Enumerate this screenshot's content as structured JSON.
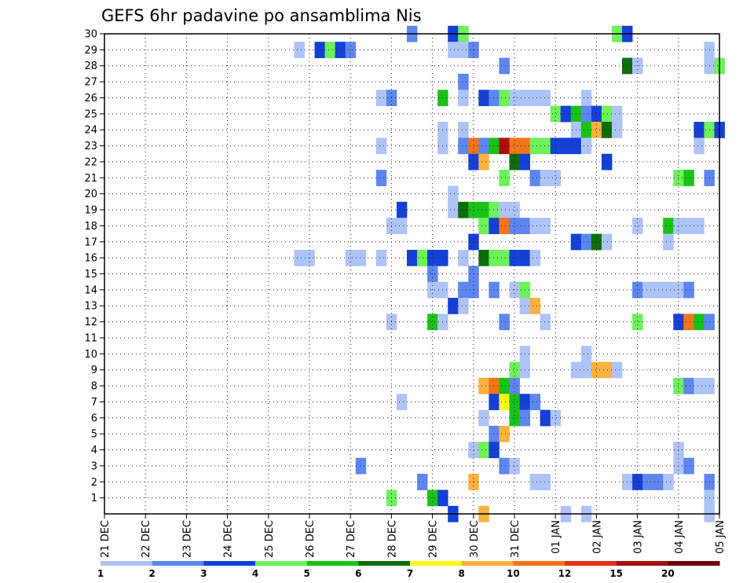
{
  "chart_data": {
    "type": "heatmap",
    "title": "GEFS 6hr padavine po ansamblima Nis",
    "x_tick_labels": [
      "21 DEC",
      "22 DEC",
      "23 DEC",
      "24 DEC",
      "25 DEC",
      "26 DEC",
      "27 DEC",
      "28 DEC",
      "29 DEC",
      "30 DEC",
      "31 DEC",
      "01 JAN",
      "02 JAN",
      "03 JAN",
      "04 JAN",
      "05 JAN"
    ],
    "y_tick_labels": [
      "1",
      "2",
      "3",
      "4",
      "5",
      "6",
      "7",
      "8",
      "9",
      "10",
      "11",
      "12",
      "13",
      "14",
      "15",
      "16",
      "17",
      "18",
      "19",
      "20",
      "21",
      "22",
      "23",
      "24",
      "25",
      "26",
      "27",
      "28",
      "29",
      "30"
    ],
    "x_steps_per_day": 4,
    "x_range_steps": [
      0,
      60
    ],
    "y_range": [
      0,
      30
    ],
    "grid": true,
    "colorbar": {
      "labels": [
        "1",
        "2",
        "3",
        "4",
        "5",
        "6",
        "7",
        "8",
        "10",
        "12",
        "15",
        "20"
      ],
      "colors": [
        "#aec4f8",
        "#5d86ef",
        "#1540d8",
        "#6cf25a",
        "#17c317",
        "#0b6e0b",
        "#fffa18",
        "#fbb23e",
        "#f47518",
        "#e0351b",
        "#a81010",
        "#6e0707"
      ]
    },
    "cells": [
      [
        30,
        30,
        1
      ],
      [
        30,
        34,
        2
      ],
      [
        30,
        35,
        3
      ],
      [
        30,
        50,
        3
      ],
      [
        30,
        51,
        2
      ],
      [
        29,
        19,
        0
      ],
      [
        29,
        21,
        2
      ],
      [
        29,
        22,
        3
      ],
      [
        29,
        23,
        2
      ],
      [
        29,
        24,
        1
      ],
      [
        29,
        34,
        0
      ],
      [
        29,
        35,
        0
      ],
      [
        29,
        36,
        1
      ],
      [
        29,
        59,
        0
      ],
      [
        28,
        39,
        1
      ],
      [
        28,
        51,
        5
      ],
      [
        28,
        52,
        0
      ],
      [
        28,
        59,
        0
      ],
      [
        28,
        60,
        3
      ],
      [
        27,
        35,
        1
      ],
      [
        26,
        27,
        0
      ],
      [
        26,
        28,
        1
      ],
      [
        26,
        33,
        4
      ],
      [
        26,
        35,
        0
      ],
      [
        26,
        37,
        2
      ],
      [
        26,
        38,
        1
      ],
      [
        26,
        39,
        3
      ],
      [
        26,
        40,
        0
      ],
      [
        26,
        41,
        0
      ],
      [
        26,
        42,
        0
      ],
      [
        26,
        43,
        0
      ],
      [
        26,
        47,
        0
      ],
      [
        25,
        44,
        3
      ],
      [
        25,
        45,
        2
      ],
      [
        25,
        46,
        4
      ],
      [
        25,
        47,
        1
      ],
      [
        25,
        48,
        2
      ],
      [
        25,
        49,
        3
      ],
      [
        25,
        50,
        0
      ],
      [
        24,
        33,
        0
      ],
      [
        24,
        35,
        0
      ],
      [
        24,
        46,
        0
      ],
      [
        24,
        47,
        4
      ],
      [
        24,
        48,
        7
      ],
      [
        24,
        49,
        5
      ],
      [
        24,
        50,
        0
      ],
      [
        24,
        58,
        2
      ],
      [
        24,
        59,
        3
      ],
      [
        24,
        60,
        2
      ],
      [
        23,
        27,
        0
      ],
      [
        23,
        33,
        0
      ],
      [
        23,
        35,
        1
      ],
      [
        23,
        36,
        8
      ],
      [
        23,
        37,
        1
      ],
      [
        23,
        38,
        4
      ],
      [
        23,
        39,
        10
      ],
      [
        23,
        40,
        8
      ],
      [
        23,
        41,
        8
      ],
      [
        23,
        42,
        3
      ],
      [
        23,
        43,
        3
      ],
      [
        23,
        44,
        2
      ],
      [
        23,
        45,
        2
      ],
      [
        23,
        46,
        2
      ],
      [
        23,
        47,
        0
      ],
      [
        23,
        58,
        0
      ],
      [
        22,
        36,
        2
      ],
      [
        22,
        37,
        7
      ],
      [
        22,
        40,
        5
      ],
      [
        22,
        41,
        2
      ],
      [
        22,
        49,
        2
      ],
      [
        21,
        27,
        1
      ],
      [
        21,
        39,
        3
      ],
      [
        21,
        42,
        1
      ],
      [
        21,
        43,
        0
      ],
      [
        21,
        44,
        0
      ],
      [
        21,
        56,
        3
      ],
      [
        21,
        57,
        4
      ],
      [
        21,
        59,
        1
      ],
      [
        20,
        34,
        0
      ],
      [
        19,
        29,
        2
      ],
      [
        19,
        34,
        0
      ],
      [
        19,
        35,
        5
      ],
      [
        19,
        36,
        4
      ],
      [
        19,
        37,
        4
      ],
      [
        19,
        38,
        3
      ],
      [
        19,
        39,
        0
      ],
      [
        19,
        40,
        0
      ],
      [
        18,
        28,
        0
      ],
      [
        18,
        29,
        0
      ],
      [
        18,
        37,
        3
      ],
      [
        18,
        38,
        2
      ],
      [
        18,
        39,
        8
      ],
      [
        18,
        40,
        1
      ],
      [
        18,
        41,
        1
      ],
      [
        18,
        42,
        0
      ],
      [
        18,
        43,
        0
      ],
      [
        18,
        52,
        0
      ],
      [
        18,
        55,
        4
      ],
      [
        18,
        56,
        0
      ],
      [
        18,
        57,
        0
      ],
      [
        18,
        58,
        0
      ],
      [
        17,
        36,
        2
      ],
      [
        17,
        46,
        2
      ],
      [
        17,
        47,
        1
      ],
      [
        17,
        48,
        5
      ],
      [
        17,
        49,
        0
      ],
      [
        17,
        55,
        0
      ],
      [
        16,
        19,
        0
      ],
      [
        16,
        20,
        0
      ],
      [
        16,
        24,
        0
      ],
      [
        16,
        25,
        0
      ],
      [
        16,
        27,
        0
      ],
      [
        16,
        30,
        2
      ],
      [
        16,
        31,
        3
      ],
      [
        16,
        32,
        2
      ],
      [
        16,
        33,
        2
      ],
      [
        16,
        35,
        0
      ],
      [
        16,
        37,
        5
      ],
      [
        16,
        38,
        3
      ],
      [
        16,
        39,
        3
      ],
      [
        16,
        40,
        2
      ],
      [
        16,
        41,
        2
      ],
      [
        16,
        42,
        0
      ],
      [
        15,
        32,
        1
      ],
      [
        15,
        36,
        1
      ],
      [
        14,
        32,
        0
      ],
      [
        14,
        33,
        0
      ],
      [
        14,
        35,
        1
      ],
      [
        14,
        36,
        1
      ],
      [
        14,
        38,
        1
      ],
      [
        14,
        40,
        0
      ],
      [
        14,
        41,
        3
      ],
      [
        14,
        52,
        1
      ],
      [
        14,
        53,
        0
      ],
      [
        14,
        54,
        0
      ],
      [
        14,
        55,
        0
      ],
      [
        14,
        56,
        0
      ],
      [
        14,
        57,
        1
      ],
      [
        13,
        34,
        2
      ],
      [
        13,
        35,
        0
      ],
      [
        13,
        41,
        0
      ],
      [
        13,
        42,
        7
      ],
      [
        12,
        28,
        0
      ],
      [
        12,
        32,
        4
      ],
      [
        12,
        33,
        0
      ],
      [
        12,
        39,
        1
      ],
      [
        12,
        43,
        0
      ],
      [
        12,
        52,
        3
      ],
      [
        12,
        56,
        2
      ],
      [
        12,
        57,
        8
      ],
      [
        12,
        58,
        4
      ],
      [
        12,
        59,
        1
      ],
      [
        10,
        41,
        0
      ],
      [
        10,
        47,
        0
      ],
      [
        9,
        40,
        3
      ],
      [
        9,
        41,
        0
      ],
      [
        9,
        46,
        0
      ],
      [
        9,
        47,
        0
      ],
      [
        9,
        48,
        7
      ],
      [
        9,
        49,
        7
      ],
      [
        9,
        50,
        0
      ],
      [
        8,
        37,
        7
      ],
      [
        8,
        38,
        8
      ],
      [
        8,
        39,
        4
      ],
      [
        8,
        40,
        1
      ],
      [
        8,
        56,
        3
      ],
      [
        8,
        57,
        1
      ],
      [
        8,
        58,
        0
      ],
      [
        8,
        59,
        0
      ],
      [
        7,
        29,
        0
      ],
      [
        7,
        38,
        2
      ],
      [
        7,
        39,
        6
      ],
      [
        7,
        40,
        4
      ],
      [
        7,
        41,
        2
      ],
      [
        7,
        42,
        1
      ],
      [
        6,
        37,
        0
      ],
      [
        6,
        40,
        4
      ],
      [
        6,
        41,
        1
      ],
      [
        6,
        43,
        2
      ],
      [
        6,
        44,
        0
      ],
      [
        5,
        38,
        1
      ],
      [
        5,
        39,
        7
      ],
      [
        4,
        36,
        0
      ],
      [
        4,
        37,
        3
      ],
      [
        4,
        38,
        2
      ],
      [
        4,
        56,
        0
      ],
      [
        3,
        25,
        1
      ],
      [
        3,
        39,
        1
      ],
      [
        3,
        40,
        0
      ],
      [
        3,
        56,
        0
      ],
      [
        3,
        57,
        1
      ],
      [
        2,
        31,
        1
      ],
      [
        2,
        36,
        7
      ],
      [
        2,
        42,
        0
      ],
      [
        2,
        43,
        0
      ],
      [
        2,
        51,
        0
      ],
      [
        2,
        52,
        2
      ],
      [
        2,
        53,
        1
      ],
      [
        2,
        54,
        1
      ],
      [
        2,
        55,
        0
      ],
      [
        2,
        59,
        1
      ],
      [
        1,
        28,
        3
      ],
      [
        1,
        32,
        4
      ],
      [
        1,
        33,
        2
      ],
      [
        1,
        59,
        0
      ],
      [
        0,
        34,
        2
      ],
      [
        0,
        37,
        7
      ],
      [
        0,
        45,
        0
      ],
      [
        0,
        47,
        0
      ],
      [
        0,
        59,
        0
      ]
    ]
  }
}
